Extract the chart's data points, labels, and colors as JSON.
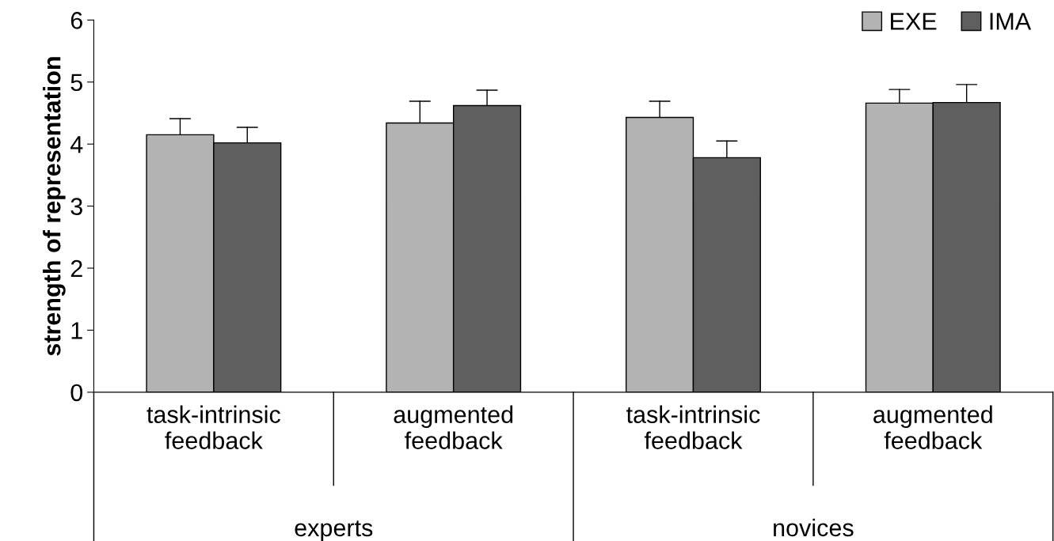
{
  "chart_data": {
    "type": "bar",
    "ylabel": "strength of representation",
    "categories": [
      "task-intrinsic\nfeedback",
      "augmented\nfeedback",
      "task-intrinsic\nfeedback",
      "augmented\nfeedback"
    ],
    "series": [
      {
        "name": "EXE",
        "color": "#b3b3b3",
        "values": [
          4.15,
          4.34,
          4.43,
          4.66
        ],
        "errors": [
          [
            4.15,
            4.41
          ],
          [
            4.34,
            4.69
          ],
          [
            4.43,
            4.69
          ],
          [
            4.66,
            4.88
          ]
        ]
      },
      {
        "name": "IMA",
        "color": "#5f5f5f",
        "values": [
          4.02,
          4.62,
          3.78,
          4.67
        ],
        "errors": [
          [
            4.02,
            4.27
          ],
          [
            4.62,
            4.87
          ],
          [
            3.78,
            4.05
          ],
          [
            4.67,
            4.96
          ]
        ]
      }
    ],
    "ylim": [
      0,
      6
    ],
    "yticks": [
      0,
      1,
      2,
      3,
      4,
      5,
      6
    ],
    "grid": false,
    "legend": "top right",
    "annotations": [
      "experts",
      "novices"
    ]
  }
}
